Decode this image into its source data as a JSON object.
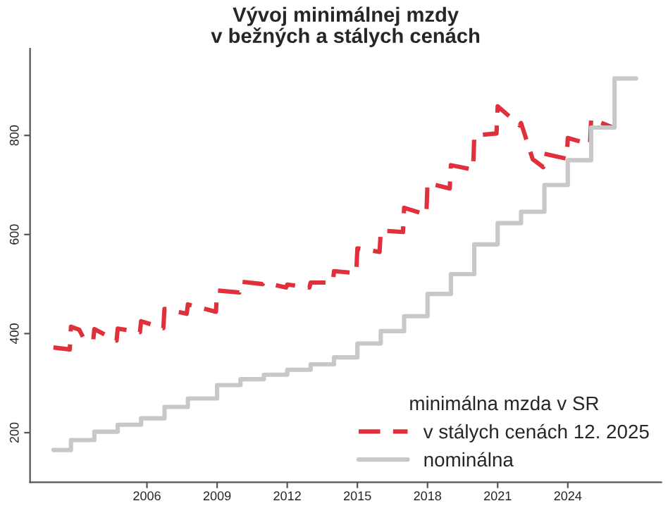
{
  "chart_data": {
    "type": "line",
    "title": "Vývoj minimálnej mzdy\nv bežných a stálych cenách",
    "legend_title": "minimálna mzda v SR",
    "legend": "bottom right",
    "grid": false,
    "xlim": [
      2001,
      2028
    ],
    "xticks": [
      2006,
      2009,
      2012,
      2015,
      2018,
      2021,
      2024
    ],
    "ylim": [
      100,
      975
    ],
    "yticks": [
      200,
      400,
      600,
      800
    ],
    "series": [
      {
        "name": "v stálych cenách 12. 2025",
        "line_style": "dashed",
        "color": "#e0303c",
        "x": [
          2002.0,
          2002.7,
          2002.75,
          2003.1,
          2003.3,
          2003.7,
          2003.75,
          2004.7,
          2004.75,
          2005.7,
          2005.75,
          2006.7,
          2006.75,
          2007.7,
          2007.75,
          2008.95,
          2009.0,
          2009.95,
          2010.0,
          2010.95,
          2011.0,
          2011.95,
          2012.0,
          2012.95,
          2013.0,
          2013.95,
          2014.0,
          2014.95,
          2015.0,
          2015.95,
          2016.0,
          2016.95,
          2017.0,
          2017.95,
          2018.0,
          2018.95,
          2019.0,
          2019.95,
          2020.0,
          2020.95,
          2021.0,
          2021.95,
          2022.0,
          2022.5,
          2022.95,
          2023.0,
          2023.95,
          2024.0,
          2024.95,
          2025.0,
          2025.92
        ],
        "values": [
          372,
          368,
          414,
          408,
          390,
          386,
          409,
          386,
          410,
          403,
          425,
          411,
          450,
          440,
          459,
          444,
          487,
          483,
          505,
          500,
          503,
          493,
          499,
          493,
          503,
          503,
          526,
          522,
          572,
          565,
          608,
          605,
          654,
          640,
          704,
          693,
          740,
          731,
          800,
          804,
          859,
          820,
          825,
          752,
          736,
          763,
          753,
          795,
          782,
          834,
          816
        ]
      },
      {
        "name": "nominálna",
        "type": "step",
        "line_style": "solid",
        "color": "#c8c8c8",
        "x": [
          2002.0,
          2002.75,
          2003.75,
          2004.75,
          2005.75,
          2006.75,
          2007.75,
          2009.0,
          2010.0,
          2011.0,
          2012.0,
          2013.0,
          2014.0,
          2015.0,
          2016.0,
          2017.0,
          2018.0,
          2019.0,
          2020.0,
          2021.0,
          2022.0,
          2023.0,
          2024.0,
          2025.0,
          2026.0,
          2026.92
        ],
        "values": [
          165,
          185,
          202,
          216,
          229,
          252,
          269,
          296,
          308,
          317,
          327,
          338,
          352,
          380,
          405,
          435,
          480,
          520,
          580,
          623,
          646,
          700,
          750,
          816,
          915,
          915
        ]
      }
    ]
  }
}
